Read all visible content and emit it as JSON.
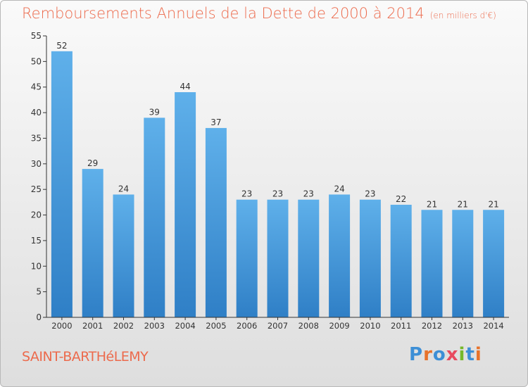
{
  "header": {
    "title": "Remboursements Annuels de la Dette de 2000 à 2014",
    "unit": "(en milliers d'€)"
  },
  "footer": {
    "commune": "SAINT-BARTHéLEMY",
    "logo_letters": [
      "P",
      "r",
      "o",
      "x",
      "i",
      "t",
      "i"
    ],
    "logo_colors": [
      "#3d8fd6",
      "#e8722a",
      "#3d8fd6",
      "#e84a5f",
      "#76b82a",
      "#3d8fd6",
      "#e8722a"
    ]
  },
  "colors": {
    "bar_top": "#5fb0ea",
    "bar_bottom": "#2f7fc6",
    "axis": "#333333",
    "text": "#333333"
  },
  "chart_data": {
    "type": "bar",
    "categories": [
      "2000",
      "2001",
      "2002",
      "2003",
      "2004",
      "2005",
      "2006",
      "2007",
      "2008",
      "2009",
      "2010",
      "2011",
      "2012",
      "2013",
      "2014"
    ],
    "values": [
      52,
      29,
      24,
      39,
      44,
      37,
      23,
      23,
      23,
      24,
      23,
      22,
      21,
      21,
      21
    ],
    "title": "Remboursements Annuels de la Dette de 2000 à 2014",
    "xlabel": "",
    "ylabel": "",
    "ylim": [
      0,
      55
    ],
    "yticks": [
      0,
      5,
      10,
      15,
      20,
      25,
      30,
      35,
      40,
      45,
      50,
      55
    ],
    "grid": false,
    "data_labels": true
  }
}
